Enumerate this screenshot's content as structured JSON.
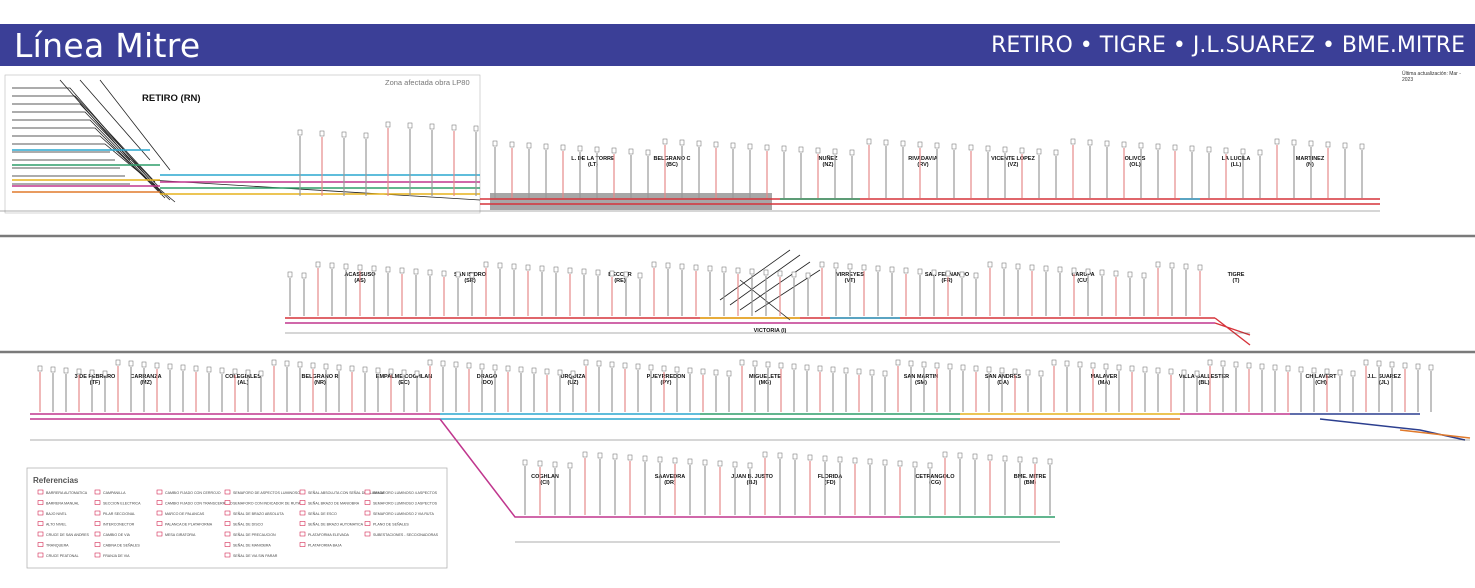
{
  "header": {
    "title": "Línea Mitre",
    "routes": "RETIRO • TIGRE • J.L.SUAREZ • BME.MITRE",
    "updated": "Última actualización: Mar - 2023"
  },
  "retiro": {
    "name": "RETIRO (RN)",
    "zone_note": "Zona afectada obra LP80"
  },
  "colors": {
    "header": "#3b3f97",
    "main_track": "#d6333a",
    "magenta": "#c0378e",
    "cyan": "#2aa7cf",
    "green": "#2e9e6a",
    "yellow": "#e6b21d",
    "orange": "#e07a2c",
    "navy": "#2c3f8f",
    "separator": "#7a7a7a",
    "zone_fill": "#8a8a8a"
  },
  "row1_stations": [
    {
      "name": "L. DE LA TORRE",
      "code": "(LT)"
    },
    {
      "name": "BELGRANO C",
      "code": "(BC)"
    },
    {
      "name": "NUÑEZ",
      "code": "(NZ)"
    },
    {
      "name": "RIVADAVIA",
      "code": "(RV)"
    },
    {
      "name": "VICENTE LOPEZ",
      "code": "(VZ)"
    },
    {
      "name": "OLIVOS",
      "code": "(OL)"
    },
    {
      "name": "LA LUCILA",
      "code": "(LL)"
    },
    {
      "name": "MARTINEZ",
      "code": "(N)"
    }
  ],
  "row2_stations": [
    {
      "name": "ACASSUSO",
      "code": "(AS)"
    },
    {
      "name": "SAN ISIDRO",
      "code": "(SR)"
    },
    {
      "name": "BECCAR",
      "code": "(RE)"
    },
    {
      "name": "VICTORIA (I)",
      "code": ""
    },
    {
      "name": "VIRREYES",
      "code": "(VT)"
    },
    {
      "name": "SAN FERNANDO",
      "code": "(FR)"
    },
    {
      "name": "CARUPA",
      "code": "(CU)"
    },
    {
      "name": "TIGRE",
      "code": "(T)"
    }
  ],
  "row3_stations": [
    {
      "name": "3 DE FEBRERO",
      "code": "(TF)"
    },
    {
      "name": "CARRANZA",
      "code": "(MZ)"
    },
    {
      "name": "COLEGIALES",
      "code": "(AL)"
    },
    {
      "name": "BELGRANO R",
      "code": "(NR)"
    },
    {
      "name": "EMPALME COGHLAN",
      "code": "(EC)"
    },
    {
      "name": "DRAGO",
      "code": "(DO)"
    },
    {
      "name": "URQUIZA",
      "code": "(UZ)"
    },
    {
      "name": "PUEYRREDON",
      "code": "(PY)"
    },
    {
      "name": "MIGUELETE",
      "code": "(MG)"
    },
    {
      "name": "SAN MARTIN",
      "code": "(SM)"
    },
    {
      "name": "SAN ANDRES",
      "code": "(DA)"
    },
    {
      "name": "MALAVER",
      "code": "(MA)"
    },
    {
      "name": "VILLA BALLESTER",
      "code": "(BL)"
    },
    {
      "name": "CHILAVERT",
      "code": "(CH)"
    },
    {
      "name": "J.L. SUAREZ",
      "code": "(JL)"
    }
  ],
  "row4_stations": [
    {
      "name": "COGHLAN",
      "code": "(CI)"
    },
    {
      "name": "SAAVEDRA",
      "code": "(DR)"
    },
    {
      "name": "JUAN B. JUSTO",
      "code": "(BJ)"
    },
    {
      "name": "FLORIDA",
      "code": "(FD)"
    },
    {
      "name": "CETRANGOLO",
      "code": "(CG)"
    },
    {
      "name": "BME. MITRE",
      "code": "(BM)"
    }
  ],
  "legend": {
    "title": "Referencias",
    "items": [
      "BARRERA AUTOMATICA",
      "BARRERA MANUAL",
      "BAJO NIVEL",
      "ALTO NIVEL",
      "CRUCE DE SAN ANDRES",
      "TRANQUERA",
      "CRUCE PEATONAL",
      "CAMPANILLA",
      "SECCION ELECTRICA",
      "PILAR SECCIONAL",
      "INTERCONECTOR",
      "CAMBIO DE VIA",
      "CABINA DE SEÑALES",
      "FRANJA DE VIA",
      "CAMBIO FIJADO CON CERROJO",
      "CAMBIO FIJADO CON TRANSCERROJO",
      "MARCO DE PALANCAS",
      "PALANCA DE PLATAFORMA",
      "MESA GIRATORIA",
      "SEMAFORO DE ASPECTOS LUMINOSOS",
      "SEMAFORO CON INDICADOR DE RUTA",
      "SEÑAL DE BRAZO ABSOLUTA",
      "SEÑAL DE DISCO",
      "SEÑAL DE PRECAUCION",
      "SEÑAL DE MANIOBRA",
      "SEÑAL DE VIA SIN PARAR",
      "SEÑAL ABSOLUTA CON SEÑAL DE LLAMADA",
      "SEÑAL BRAZO DE MANIOBRA",
      "SEÑAL DE ESCO",
      "SEÑAL DE BRAZO AUTOMATICA",
      "PLATAFORMA ELEVADA",
      "PLATAFORMA BAJA",
      "SEMAFORO LUMINOSO 4 ASPECTOS",
      "SEMAFORO LUMINOSO 3 ASPECTOS",
      "SEMAFORO LUMINOSO 2 VIA RUTA",
      "PLANO DE SEÑALES",
      "SUBESTACIONES - SECCIONADORAS"
    ]
  }
}
